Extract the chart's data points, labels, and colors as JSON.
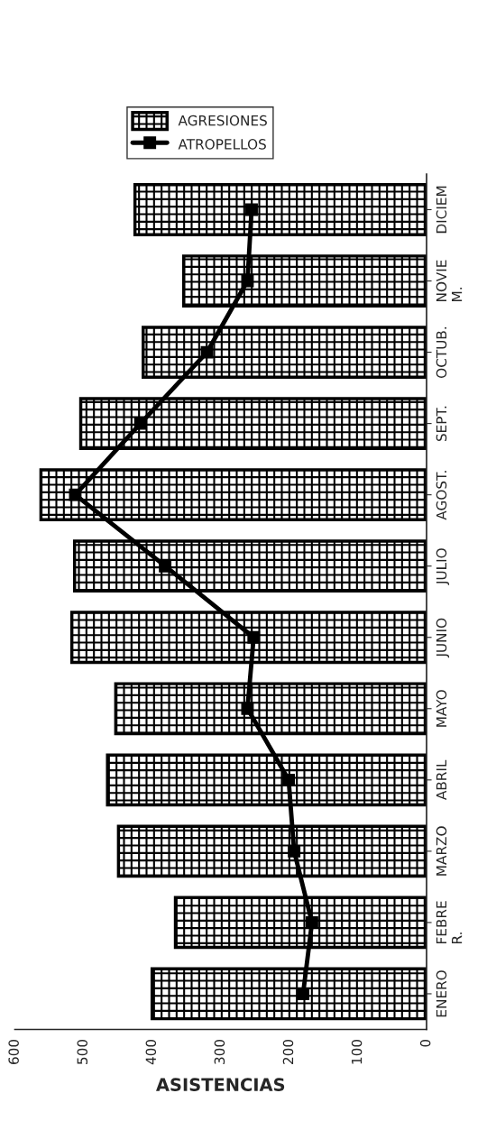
{
  "chart_data": {
    "type": "bar",
    "orientation": "horizontal",
    "xlabel": "ASISTENCIAS",
    "categories": [
      "DICIEM",
      "NOVIE\nM.",
      "OCTUB.",
      "SEPT.",
      "AGOST.",
      "JULIO",
      "JUNIO",
      "MAYO",
      "ABRIL",
      "MARZO",
      "FEBRE\nR.",
      "ENERO"
    ],
    "series": [
      {
        "name": "AGRESIONES",
        "color": "#000000",
        "values": [
          425,
          354,
          413,
          504,
          562,
          513,
          517,
          453,
          465,
          449,
          366,
          400
        ]
      },
      {
        "name": "ATROPELLOS",
        "type": "line",
        "color": "#000000",
        "marker": "square",
        "values": [
          255,
          261,
          320,
          417,
          512,
          381,
          252,
          261,
          201,
          193,
          167,
          180
        ]
      }
    ],
    "xlim": [
      600,
      0
    ],
    "xticks": [
      600,
      500,
      400,
      300,
      200,
      100,
      0
    ],
    "grid": false,
    "legend": "top"
  }
}
